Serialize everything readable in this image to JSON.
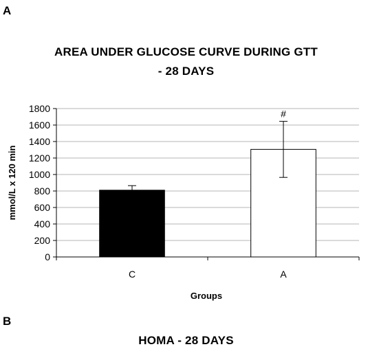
{
  "panel_a_label": "A",
  "panel_b_label": "B",
  "panel_b_title": "HOMA - 28 DAYS",
  "chart_data": {
    "type": "bar",
    "title_line1": "AREA UNDER GLUCOSE CURVE DURING GTT",
    "title_line2": "- 28 DAYS",
    "categories": [
      "C",
      "A"
    ],
    "values": [
      810,
      1305
    ],
    "errors": [
      55,
      340
    ],
    "bar_fills": [
      "#000000",
      "#ffffff"
    ],
    "annotations": [
      "",
      "#"
    ],
    "xlabel": "Groups",
    "ylabel": "mmol/L x 120 min",
    "ylim": [
      0,
      1800
    ],
    "yticks": [
      0,
      200,
      400,
      600,
      800,
      1000,
      1200,
      1400,
      1600,
      1800
    ],
    "grid": true,
    "legend": "none"
  }
}
